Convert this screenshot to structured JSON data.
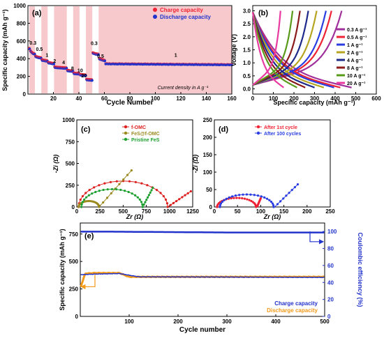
{
  "chart_data": [
    {
      "panel": "(a)",
      "type": "scatter",
      "xlabel": "Cycle Number",
      "ylabel": "Specific capacity (mAh g⁻¹)",
      "xlim": [
        0,
        160
      ],
      "ylim": [
        0,
        1000
      ],
      "xticks": [
        "20",
        "40",
        "60",
        "80",
        "100",
        "120",
        "140",
        "160"
      ],
      "yticks": [
        "0",
        "200",
        "400",
        "600",
        "800",
        "1000"
      ],
      "legend": [
        "Charge capacity",
        "Discharge capacity"
      ],
      "annotation": "Current density in A g⁻¹",
      "rate_labels": [
        {
          "label": "0.3",
          "x": 4,
          "y": 560
        },
        {
          "label": "0.5",
          "x": 9,
          "y": 490
        },
        {
          "label": "1",
          "x": 15,
          "y": 420
        },
        {
          "label": "2",
          "x": 21,
          "y": 355
        },
        {
          "label": "4",
          "x": 28,
          "y": 340
        },
        {
          "label": "8",
          "x": 35,
          "y": 270
        },
        {
          "label": "10",
          "x": 41,
          "y": 250
        },
        {
          "label": "20",
          "x": 44,
          "y": 190
        },
        {
          "label": "0.3",
          "x": 52,
          "y": 555
        },
        {
          "label": "0.5",
          "x": 57,
          "y": 410
        },
        {
          "label": "1",
          "x": 116,
          "y": 420
        }
      ],
      "segments": [
        {
          "from": 1,
          "to": 5,
          "values": [
            510,
            480,
            465,
            455,
            450
          ]
        },
        {
          "from": 6,
          "to": 10,
          "values": [
            420,
            415,
            410,
            408,
            405
          ]
        },
        {
          "from": 11,
          "to": 15,
          "values": [
            380,
            378,
            375,
            372,
            370
          ]
        },
        {
          "from": 16,
          "to": 20,
          "values": [
            350,
            348,
            345,
            342,
            340
          ]
        },
        {
          "from": 21,
          "to": 30,
          "values": [
            300,
            298,
            296,
            295,
            294,
            293,
            292,
            291,
            290,
            290
          ]
        },
        {
          "from": 31,
          "to": 35,
          "values": [
            262,
            260,
            258,
            257,
            256
          ]
        },
        {
          "from": 36,
          "to": 40,
          "values": [
            230,
            228,
            227,
            226,
            225
          ]
        },
        {
          "from": 41,
          "to": 45,
          "values": [
            215,
            213,
            212,
            211,
            210
          ]
        },
        {
          "from": 46,
          "to": 50,
          "values": [
            160,
            158,
            157,
            156,
            155
          ]
        },
        {
          "from": 51,
          "to": 55,
          "values": [
            460,
            455,
            450,
            448,
            445
          ]
        },
        {
          "from": 56,
          "to": 60,
          "values": [
            395,
            390,
            385,
            380,
            375
          ]
        },
        {
          "from": 61,
          "to": 160,
          "start": 340,
          "end": 330
        }
      ]
    },
    {
      "panel": "(b)",
      "type": "line",
      "xlabel": "Specific capacity (mAh g⁻¹)",
      "ylabel": "Voltage (V)",
      "xlim": [
        0,
        600
      ],
      "ylim": [
        -0.2,
        3.2
      ],
      "xticks": [
        "0",
        "100",
        "200",
        "300",
        "400",
        "500",
        "600"
      ],
      "yticks": [
        "0.0",
        "0.5",
        "1.0",
        "1.5",
        "2.0",
        "2.5",
        "3.0"
      ],
      "series": [
        {
          "name": "0.3 A g⁻¹",
          "color": "#a0309b",
          "cap": 480
        },
        {
          "name": "0.5 A g⁻¹",
          "color": "#ee2233",
          "cap": 425
        },
        {
          "name": "1 A g⁻¹",
          "color": "#2a3de0",
          "cap": 395
        },
        {
          "name": "2 A g⁻¹",
          "color": "#b5a520",
          "cap": 345
        },
        {
          "name": "4 A g⁻¹",
          "color": "#1e2a8a",
          "cap": 300
        },
        {
          "name": "8 A g⁻¹",
          "color": "#8b1a1a",
          "cap": 255
        },
        {
          "name": "10 A g⁻¹",
          "color": "#5a9a1a",
          "cap": 215
        },
        {
          "name": "20 A g⁻¹",
          "color": "#e83aa0",
          "cap": 150
        }
      ]
    },
    {
      "panel": "(c)",
      "type": "scatter",
      "xlabel": "Zr (Ω)",
      "ylabel": "-Zi (Ω)",
      "xlim": [
        0,
        1250
      ],
      "ylim": [
        0,
        1000
      ],
      "xticks": [
        "0",
        "250",
        "500",
        "750",
        "1000",
        "1250"
      ],
      "yticks": [
        "0",
        "250",
        "500",
        "750",
        "1000"
      ],
      "series": [
        {
          "name": "f-OMC",
          "color": "#dd2020",
          "center": 500,
          "radius": 480,
          "tail_from": 980,
          "tail_to": 1230,
          "tail_top": 180
        },
        {
          "name": "FeS@f-OMC",
          "color": "#9a8a20",
          "center": 130,
          "radius": 110,
          "tail_from": 240,
          "tail_to": 590,
          "tail_top": 420
        },
        {
          "name": "Pristine FeS",
          "color": "#1fa030",
          "center": 380,
          "radius": 330,
          "tail_from": 710,
          "tail_to": 820,
          "tail_top": 220
        }
      ]
    },
    {
      "panel": "(d)",
      "type": "scatter",
      "xlabel": "Zr (Ω)",
      "ylabel": "-Zi (Ω)",
      "xlim": [
        0,
        250
      ],
      "ylim": [
        0,
        250
      ],
      "xticks": [
        "0",
        "50",
        "100",
        "150",
        "200",
        "250"
      ],
      "yticks": [
        "0",
        "50",
        "100",
        "150",
        "200",
        "250"
      ],
      "series": [
        {
          "name": "After 1st cycle",
          "color": "#ee2233",
          "center": 48,
          "radius": 42,
          "tail_from": 92,
          "tail_to": 100,
          "tail_top": 25
        },
        {
          "name": "After 100 cycles",
          "color": "#2a3de0",
          "center": 70,
          "radius": 58,
          "tail_from": 130,
          "tail_to": 180,
          "tail_top": 65
        }
      ]
    },
    {
      "panel": "(e)",
      "type": "line",
      "xlabel": "Cycle number",
      "ylabel": "Specific capacity (mAh g⁻¹)",
      "y2label": "Coulombic efficiency (%)",
      "xlim": [
        0,
        500
      ],
      "ylim": [
        0,
        850
      ],
      "y2lim": [
        0,
        110
      ],
      "xticks": [
        "100",
        "200",
        "300",
        "400",
        "500"
      ],
      "yticks": [
        "0",
        "250",
        "500",
        "750"
      ],
      "y2ticks": [
        "0",
        "20",
        "40",
        "60",
        "80",
        "100"
      ],
      "series": [
        {
          "name": "Charge capacity",
          "color": "#2233cc",
          "values": [
            [
              1,
              380
            ],
            [
              30,
              385
            ],
            [
              80,
              390
            ],
            [
              120,
              360
            ],
            [
              300,
              358
            ],
            [
              500,
              355
            ]
          ]
        },
        {
          "name": "Discharge capacity",
          "color": "#f29a1a",
          "values": [
            [
              1,
              270
            ],
            [
              10,
              390
            ],
            [
              30,
              395
            ],
            [
              80,
              395
            ],
            [
              100,
              360
            ],
            [
              300,
              360
            ],
            [
              500,
              360
            ]
          ]
        },
        {
          "name": "Coulombic efficiency",
          "color": "#2233cc",
          "values": [
            [
              1,
              100
            ],
            [
              50,
              100
            ],
            [
              300,
              99
            ],
            [
              500,
              99
            ]
          ]
        }
      ]
    }
  ]
}
